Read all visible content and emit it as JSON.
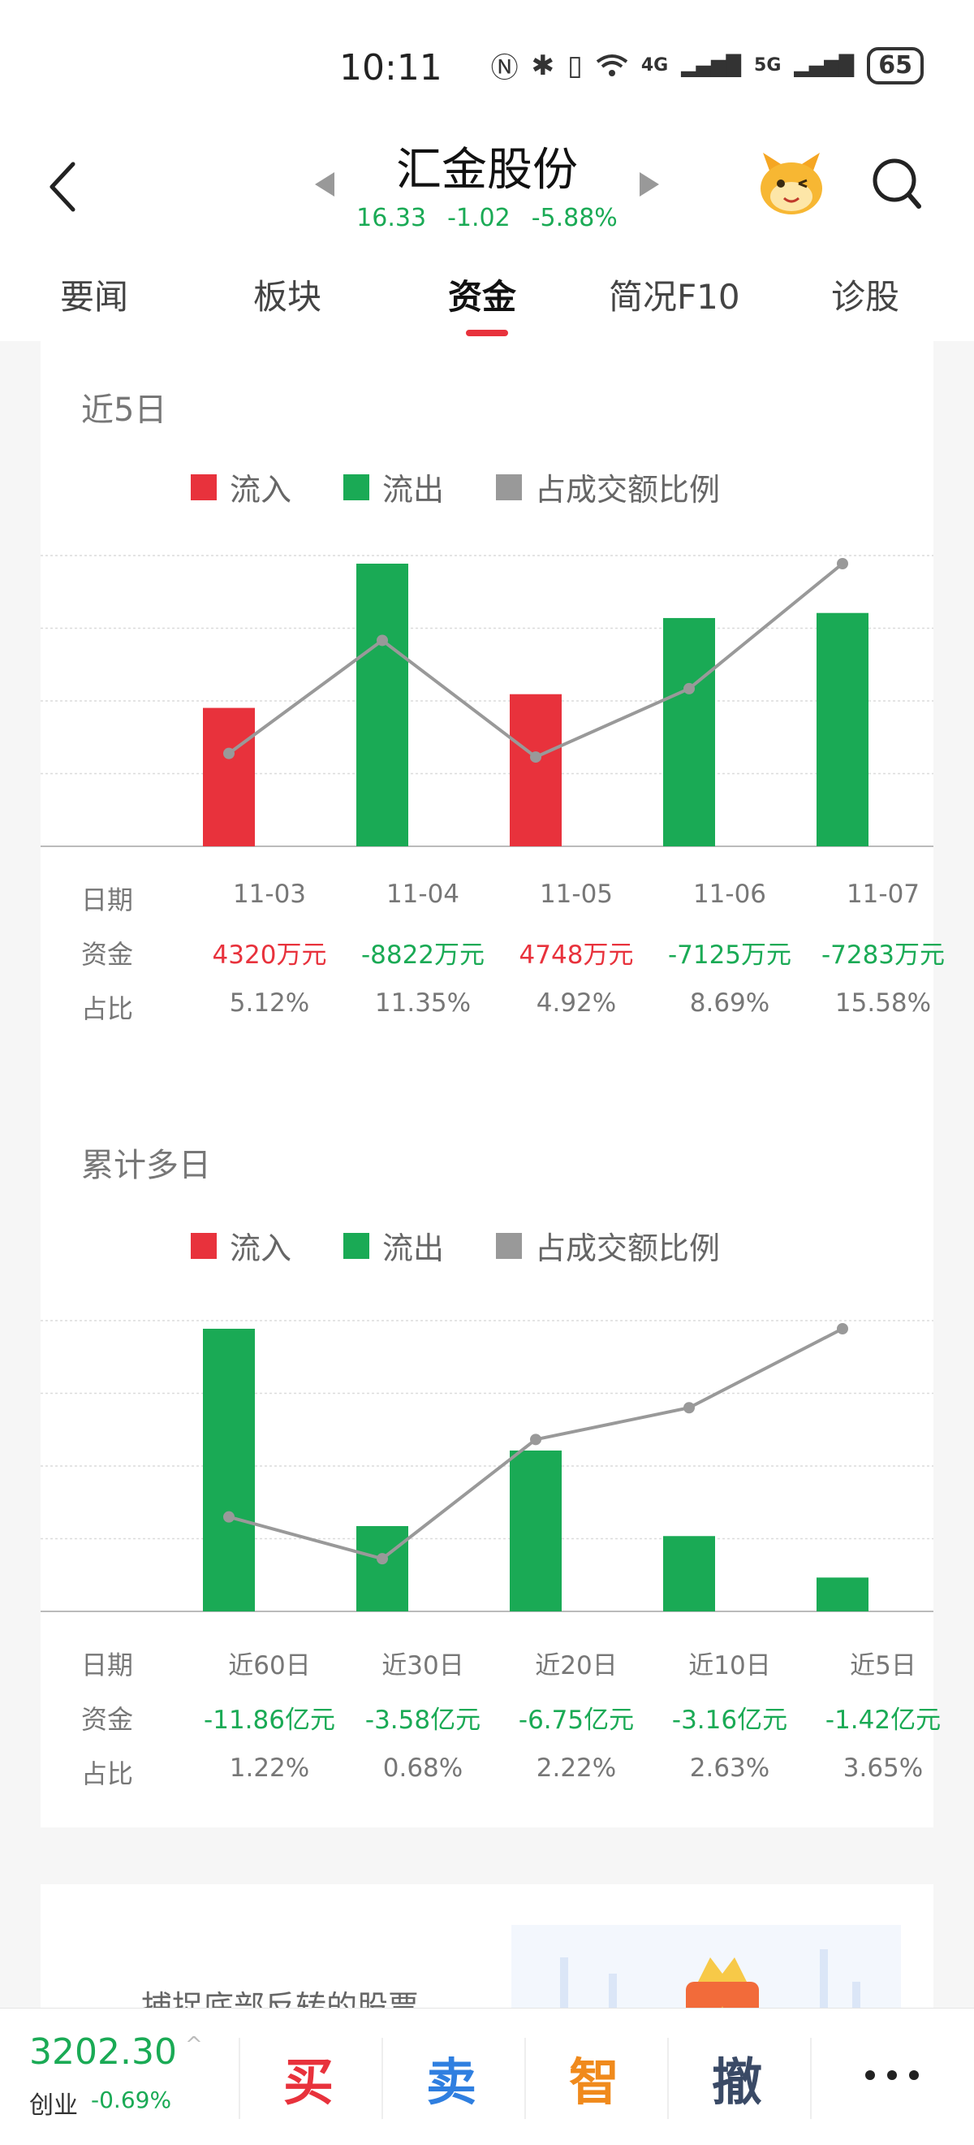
{
  "status_bar": {
    "time": "10:11",
    "network_1": "4G",
    "network_2": "5G",
    "battery": "65"
  },
  "header": {
    "title": "汇金股份",
    "price": "16.33",
    "change": "-1.02",
    "change_pct": "-5.88%",
    "icons": [
      "back-icon",
      "prev-stock-icon",
      "next-stock-icon",
      "mascot-icon",
      "search-icon"
    ]
  },
  "tabs": [
    "要闻",
    "板块",
    "资金",
    "简况F10",
    "诊股"
  ],
  "active_tab": "资金",
  "colors": {
    "inflow": "#e8323c",
    "outflow": "#1aaa55",
    "ratio": "#999999",
    "price_down": "#1aaa55"
  },
  "legend": {
    "inflow": "流入",
    "outflow": "流出",
    "ratio": "占成交额比例"
  },
  "row_labels": {
    "date": "日期",
    "fund": "资金",
    "ratio": "占比"
  },
  "sections": [
    {
      "title": "近5日",
      "dates": [
        "11-03",
        "11-04",
        "11-05",
        "11-06",
        "11-07"
      ],
      "funds": [
        "4320万元",
        "-8822万元",
        "4748万元",
        "-7125万元",
        "-7283万元"
      ],
      "ratios": [
        "5.12%",
        "11.35%",
        "4.92%",
        "8.69%",
        "15.58%"
      ]
    },
    {
      "title": "累计多日",
      "dates": [
        "近60日",
        "近30日",
        "近20日",
        "近10日",
        "近5日"
      ],
      "funds": [
        "-11.86亿元",
        "-3.58亿元",
        "-6.75亿元",
        "-3.16亿元",
        "-1.42亿元"
      ],
      "ratios": [
        "1.22%",
        "0.68%",
        "2.22%",
        "2.63%",
        "3.65%"
      ]
    }
  ],
  "chart_data": [
    {
      "type": "bar",
      "title": "近5日",
      "categories": [
        "11-03",
        "11-04",
        "11-05",
        "11-06",
        "11-07"
      ],
      "series": [
        {
          "name": "资金",
          "unit": "万元",
          "values": [
            4320,
            -8822,
            4748,
            -7125,
            -7283
          ]
        },
        {
          "name": "占成交额比例",
          "unit": "%",
          "values": [
            5.12,
            11.35,
            4.92,
            8.69,
            15.58
          ]
        }
      ],
      "bar_coloring": "positive=流入 red, negative=流出 green (bar height = magnitude)",
      "grid": true,
      "legend_position": "top"
    },
    {
      "type": "bar",
      "title": "累计多日",
      "categories": [
        "近60日",
        "近30日",
        "近20日",
        "近10日",
        "近5日"
      ],
      "series": [
        {
          "name": "资金",
          "unit": "亿元",
          "values": [
            -11.86,
            -3.58,
            -6.75,
            -3.16,
            -1.42
          ]
        },
        {
          "name": "占成交额比例",
          "unit": "%",
          "values": [
            1.22,
            0.68,
            2.22,
            2.63,
            3.65
          ]
        }
      ],
      "bar_coloring": "positive=流入 red, negative=流出 green (bar height = magnitude)",
      "grid": true,
      "legend_position": "top"
    }
  ],
  "promo": {
    "text": "捕捉底部反转的股票"
  },
  "bottom_bar": {
    "index_value": "3202.30",
    "index_arrow": "^",
    "index_name": "创业",
    "index_change": "-0.69%",
    "actions": [
      {
        "label": "买",
        "color": "#e8323c"
      },
      {
        "label": "卖",
        "color": "#2f7fe0"
      },
      {
        "label": "智",
        "color": "#f08a1c"
      },
      {
        "label": "撤",
        "color": "#3a4a66"
      }
    ]
  }
}
